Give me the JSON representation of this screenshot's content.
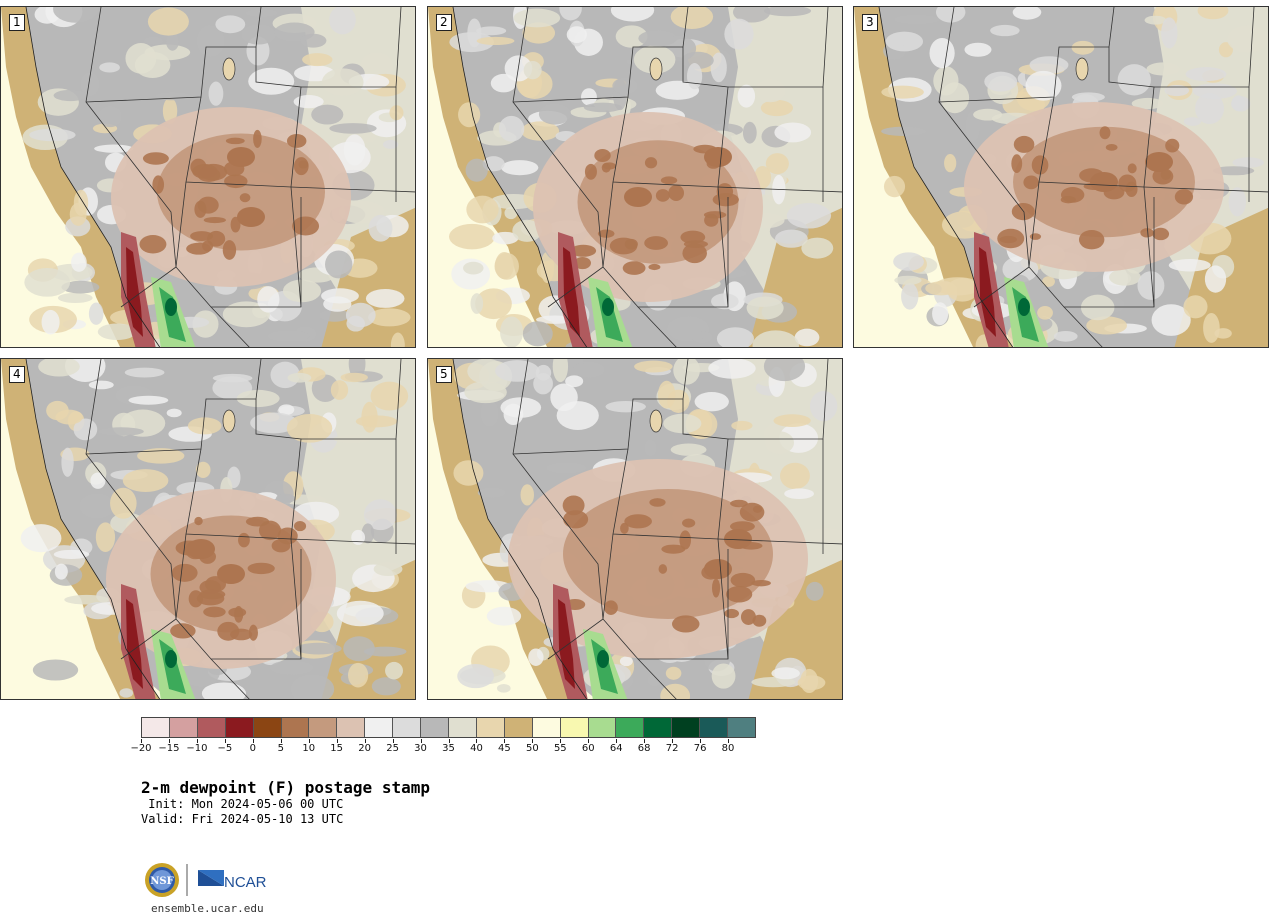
{
  "panels": [
    {
      "label": "1"
    },
    {
      "label": "2"
    },
    {
      "label": "3"
    },
    {
      "label": "4"
    },
    {
      "label": "5"
    }
  ],
  "colorbar": {
    "colors": [
      "#f4e8e8",
      "#d4a0a0",
      "#b05a5e",
      "#8b1a1f",
      "#8b4513",
      "#ad7550",
      "#c49a7e",
      "#dcc2b2",
      "#f0f0f0",
      "#dcdcdc",
      "#b8b8b8",
      "#e0dfd0",
      "#e8d6ae",
      "#cfb276",
      "#fdfbe0",
      "#f8f8b0",
      "#a8dc90",
      "#3caa5a",
      "#006837",
      "#004020",
      "#1a5a58",
      "#4f7f80"
    ],
    "ticks": [
      "−20",
      "−15",
      "−10",
      "−5",
      "0",
      "5",
      "10",
      "15",
      "20",
      "25",
      "30",
      "35",
      "40",
      "45",
      "50",
      "55",
      "60",
      "64",
      "68",
      "72",
      "76",
      "80"
    ]
  },
  "title": "2-m dewpoint (F) postage stamp",
  "init": " Init: Mon 2024-05-06 00 UTC",
  "valid": "Valid: Fri 2024-05-10 13 UTC",
  "logo": {
    "nsf": "NSF",
    "ncar": "NCAR"
  },
  "site": "ensemble.ucar.edu"
}
